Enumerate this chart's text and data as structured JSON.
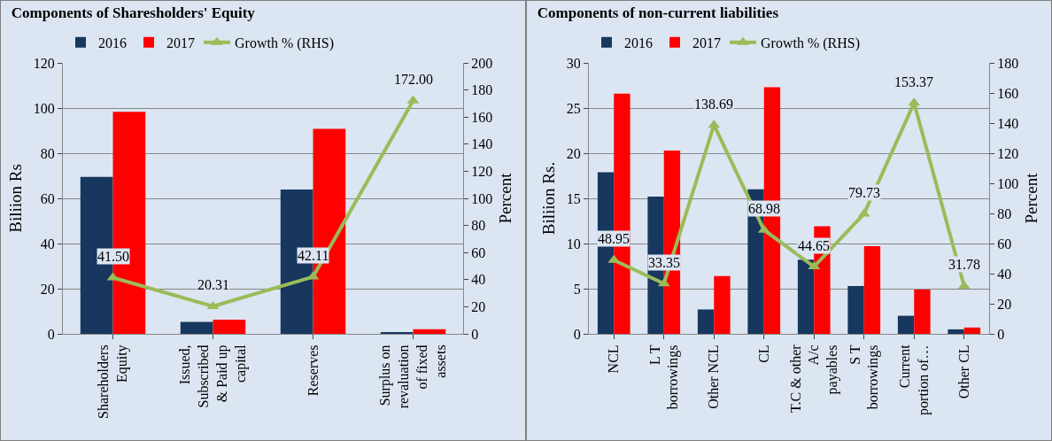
{
  "chart_data": [
    {
      "type": "bar",
      "title": "Components of Sharesholders' Equity",
      "ylabel": "Biliion Rs",
      "y2label": "Percent",
      "categories": [
        "Shareholders Equity",
        "Issued, Subscribed & Paid up capital",
        "Reserves",
        "Surplus on revaluation of fixed assets"
      ],
      "series": [
        {
          "name": "2016",
          "color": "#17375e",
          "values": [
            69.5,
            5.3,
            63.9,
            0.8
          ]
        },
        {
          "name": "2017",
          "color": "#ff0000",
          "values": [
            98.3,
            6.3,
            90.8,
            2.1
          ]
        },
        {
          "name": "Growth % (RHS)",
          "type": "line",
          "axis": "y2",
          "color": "#9bbb59",
          "values": [
            41.5,
            20.31,
            42.11,
            172.0
          ],
          "value_labels": [
            "41.50",
            "20.31",
            "42.11",
            "172.00"
          ]
        }
      ],
      "ylim": [
        0,
        120
      ],
      "yticks": [
        0,
        20,
        40,
        60,
        80,
        100,
        120
      ],
      "y2lim": [
        0,
        200
      ],
      "y2ticks": [
        0,
        20,
        40,
        60,
        80,
        100,
        120,
        140,
        160,
        180,
        200
      ],
      "grid": "y",
      "legend": "top",
      "marker": "triangle"
    },
    {
      "type": "bar",
      "title": "Components of non-current liabilities",
      "ylabel": "Biliion Rs.",
      "y2label": "Percent",
      "categories": [
        "NCL",
        "L T borrowings",
        "Other NCL",
        "CL",
        "T.C & other A/c payables",
        "S T borrowings",
        "Current portion of…",
        "Other CL"
      ],
      "series": [
        {
          "name": "2016",
          "color": "#17375e",
          "values": [
            17.9,
            15.2,
            2.7,
            16.0,
            8.2,
            5.3,
            2.0,
            0.5
          ]
        },
        {
          "name": "2017",
          "color": "#ff0000",
          "values": [
            26.6,
            20.3,
            6.4,
            27.3,
            11.9,
            9.7,
            4.9,
            0.7
          ]
        },
        {
          "name": "Growth % (RHS)",
          "type": "line",
          "axis": "y2",
          "color": "#9bbb59",
          "values": [
            48.95,
            33.35,
            138.69,
            68.98,
            44.65,
            79.73,
            153.37,
            31.78
          ],
          "value_labels": [
            "48.95",
            "33.35",
            "138.69",
            "68.98",
            "44.65",
            "79.73",
            "153.37",
            "31.78"
          ]
        }
      ],
      "ylim": [
        0,
        30
      ],
      "yticks": [
        0,
        5,
        10,
        15,
        20,
        25,
        30
      ],
      "y2lim": [
        0,
        180
      ],
      "y2ticks": [
        0,
        20,
        40,
        60,
        80,
        100,
        120,
        140,
        160,
        180
      ],
      "grid": "y",
      "legend": "top",
      "marker": "triangle"
    }
  ]
}
